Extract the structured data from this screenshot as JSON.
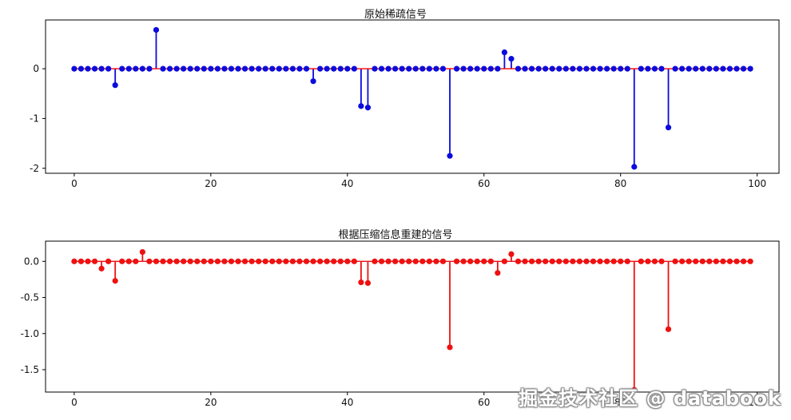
{
  "watermark": "掘金技术社区 @ databook",
  "chart_data": [
    {
      "type": "stem",
      "title": "原始稀疏信号",
      "marker_color": "#0b0bdd",
      "stem_color": "#0b0bdd",
      "baseline_color": "#ff0000",
      "n_points": 100,
      "default_value": 0,
      "nonzero_points": [
        {
          "x": 6,
          "y": -0.33
        },
        {
          "x": 12,
          "y": 0.78
        },
        {
          "x": 35,
          "y": -0.25
        },
        {
          "x": 42,
          "y": -0.75
        },
        {
          "x": 43,
          "y": -0.78
        },
        {
          "x": 55,
          "y": -1.75
        },
        {
          "x": 63,
          "y": 0.33
        },
        {
          "x": 64,
          "y": 0.2
        },
        {
          "x": 82,
          "y": -1.97
        },
        {
          "x": 87,
          "y": -1.18
        }
      ],
      "xlim": [
        -4.2,
        103.2
      ],
      "ylim": [
        -2.1,
        0.98
      ],
      "x_ticks": [
        {
          "value": 0,
          "label": "0"
        },
        {
          "value": 20,
          "label": "20"
        },
        {
          "value": 40,
          "label": "40"
        },
        {
          "value": 60,
          "label": "60"
        },
        {
          "value": 80,
          "label": "80"
        },
        {
          "value": 100,
          "label": "100"
        }
      ],
      "y_ticks": [
        {
          "value": 0,
          "label": "0"
        },
        {
          "value": -1,
          "label": "-1"
        },
        {
          "value": -2,
          "label": "-2"
        }
      ],
      "grid": false,
      "legend": null
    },
    {
      "type": "stem",
      "title": "根据压缩信息重建的信号",
      "marker_color": "#ee1111",
      "stem_color": "#ee1111",
      "baseline_color": "#ee1111",
      "n_points": 100,
      "default_value": 0,
      "nonzero_points": [
        {
          "x": 4,
          "y": -0.1
        },
        {
          "x": 6,
          "y": -0.27
        },
        {
          "x": 10,
          "y": 0.13
        },
        {
          "x": 42,
          "y": -0.29
        },
        {
          "x": 43,
          "y": -0.3
        },
        {
          "x": 55,
          "y": -1.19
        },
        {
          "x": 62,
          "y": -0.16
        },
        {
          "x": 64,
          "y": 0.1
        },
        {
          "x": 82,
          "y": -1.78
        },
        {
          "x": 87,
          "y": -0.94
        }
      ],
      "xlim": [
        -4.2,
        103.2
      ],
      "ylim": [
        -1.81,
        0.28
      ],
      "x_ticks": [
        {
          "value": 0,
          "label": "0"
        },
        {
          "value": 20,
          "label": "20"
        },
        {
          "value": 40,
          "label": "40"
        },
        {
          "value": 60,
          "label": "60"
        },
        {
          "value": 80,
          "label": "80"
        },
        {
          "value": 100,
          "label": "100"
        }
      ],
      "y_ticks": [
        {
          "value": 0,
          "label": "0.0"
        },
        {
          "value": -0.5,
          "label": "-0.5"
        },
        {
          "value": -1,
          "label": "-1.0"
        },
        {
          "value": -1.5,
          "label": "-1.5"
        }
      ],
      "grid": false,
      "legend": null
    }
  ]
}
